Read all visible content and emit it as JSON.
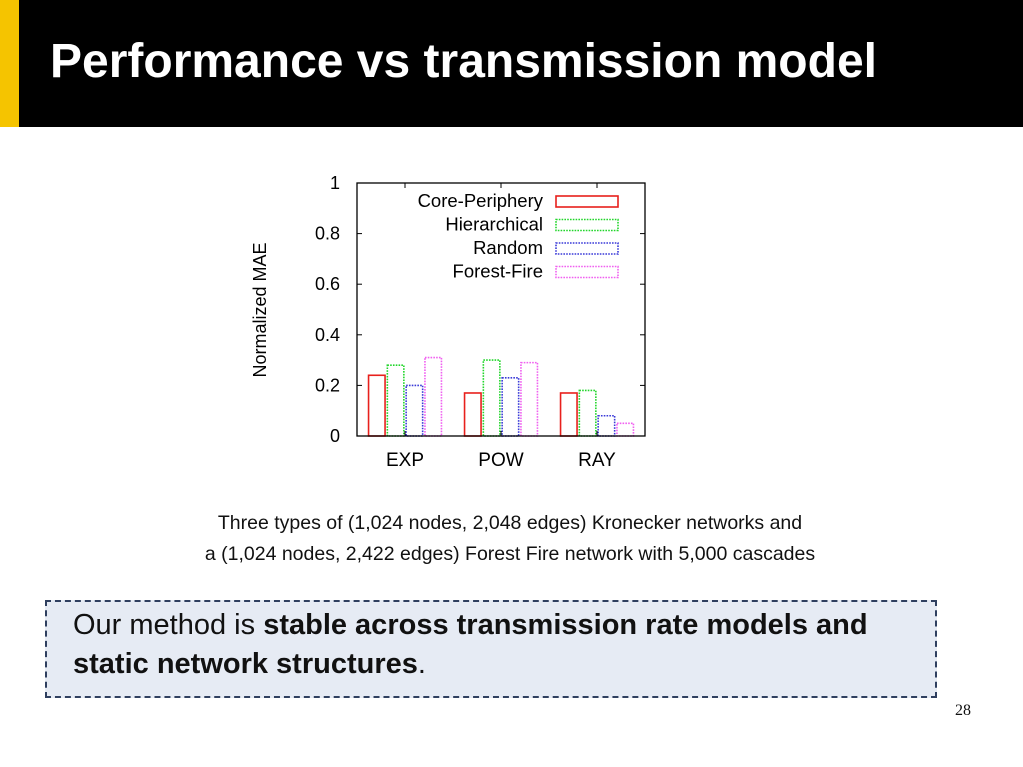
{
  "slide": {
    "title": "Performance vs transmission model",
    "page_number": "28",
    "accent_color": "#f5c400"
  },
  "caption": {
    "line1": "Three types of (1,024 nodes, 2,048 edges) Kronecker networks and",
    "line2": "a (1,024 nodes, 2,422 edges) Forest Fire network with 5,000 cascades"
  },
  "callout": {
    "prefix": "Our method is ",
    "bold": "stable across transmission rate models and static network structures",
    "suffix": "."
  },
  "chart_data": {
    "type": "bar",
    "title": "",
    "xlabel": "",
    "ylabel": "Normalized MAE",
    "categories": [
      "EXP",
      "POW",
      "RAY"
    ],
    "ylim": [
      0,
      1
    ],
    "yticks": [
      0,
      0.2,
      0.4,
      0.6,
      0.8,
      1
    ],
    "ytick_labels": [
      "0",
      "0.2",
      "0.4",
      "0.6",
      "0.8",
      "1"
    ],
    "legend_position": "top-right",
    "grid": false,
    "series": [
      {
        "name": "Core-Periphery",
        "values": [
          0.24,
          0.17,
          0.17
        ],
        "color": "#e8201c",
        "line": "solid"
      },
      {
        "name": "Hierarchical",
        "values": [
          0.28,
          0.3,
          0.18
        ],
        "color": "#22d62b",
        "line": "dotted"
      },
      {
        "name": "Random",
        "values": [
          0.2,
          0.23,
          0.08
        ],
        "color": "#3a3ad8",
        "line": "dotted"
      },
      {
        "name": "Forest-Fire",
        "values": [
          0.31,
          0.29,
          0.05
        ],
        "color": "#f060f0",
        "line": "dotted"
      }
    ]
  }
}
